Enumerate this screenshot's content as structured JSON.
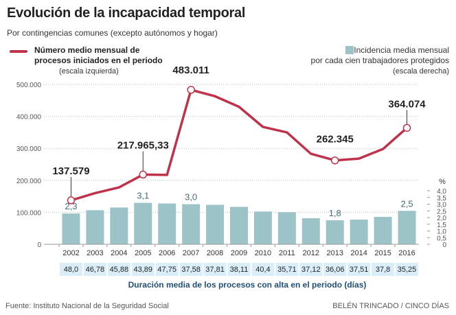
{
  "header": {
    "title": "Evolución de la incapacidad temporal",
    "subtitle": "Por contingencias comunes (excepto autónomos y hogar)"
  },
  "legend": {
    "line_line1": "Número medio mensual de",
    "line_line2": "procesos iniciados en el periodo",
    "line_scale": "(escala izquierda)",
    "bar_line1": "Incidencia media mensual",
    "bar_line2": "por cada cien trabajadores protegidos",
    "bar_scale": "(escala derecha)"
  },
  "colors": {
    "line": "#c0324a",
    "bar": "#9cc4c8",
    "bar_label": "#3f6f74",
    "duration_cell": "#daeef9",
    "duration_title": "#1f4f78"
  },
  "footer": {
    "source": "Fuente: Instituto Nacional de la Seguridad Social",
    "credit": "BELÉN TRINCADO / CINCO DÍAS"
  },
  "chart_data": {
    "type": "bar+line",
    "title": "Evolución de la incapacidad temporal",
    "categories": [
      "2002",
      "2003",
      "2004",
      "2005",
      "2006",
      "2007",
      "2008",
      "2009",
      "2010",
      "2011",
      "2012",
      "2013",
      "2014",
      "2015",
      "2016"
    ],
    "series": [
      {
        "name": "Número medio mensual de procesos iniciados en el periodo",
        "type": "line",
        "axis": "left",
        "values": [
          137579,
          160000,
          178000,
          217965.33,
          217000,
          483011,
          463000,
          430000,
          367000,
          350000,
          283000,
          262345,
          268000,
          298000,
          364074
        ],
        "labels": [
          "137.579",
          null,
          null,
          "217.965,33",
          null,
          "483.011",
          null,
          null,
          null,
          null,
          null,
          "262.345",
          null,
          null,
          "364.074"
        ]
      },
      {
        "name": "Incidencia media mensual por cada cien trabajadores protegidos",
        "type": "bar",
        "axis": "right",
        "values": [
          2.3,
          2.55,
          2.75,
          3.1,
          3.05,
          3.0,
          2.95,
          2.8,
          2.45,
          2.4,
          1.95,
          1.8,
          1.85,
          2.05,
          2.5
        ],
        "labels": [
          "2,3",
          null,
          null,
          "3,1",
          null,
          "3,0",
          null,
          null,
          null,
          null,
          null,
          "1,8",
          null,
          null,
          "2,5"
        ]
      }
    ],
    "left_axis": {
      "ylim": [
        0,
        500000
      ],
      "ticks": [
        0,
        100000,
        200000,
        300000,
        400000,
        500000
      ],
      "tick_labels": [
        "0",
        "100.000",
        "200.000",
        "300.000",
        "400.000",
        "500.000"
      ]
    },
    "right_axis": {
      "unit": "%",
      "ylim": [
        0,
        4.0
      ],
      "ticks": [
        0,
        0.5,
        1.0,
        1.5,
        2.0,
        2.5,
        3.0,
        3.5,
        4.0
      ],
      "tick_labels": [
        "0",
        "0,5",
        "1,0",
        "1,5",
        "2,0",
        "2,5",
        "3,0",
        "3,5",
        "4,0"
      ]
    },
    "duration": {
      "title": "Duración media de los procesos con alta en el periodo (días)",
      "values": [
        "48,0",
        "46,78",
        "45,88",
        "43,89",
        "47,75",
        "37,58",
        "37,81",
        "38,11",
        "40,4",
        "35,71",
        "37,12",
        "36,06",
        "37,51",
        "37,8",
        "35,25"
      ]
    }
  }
}
